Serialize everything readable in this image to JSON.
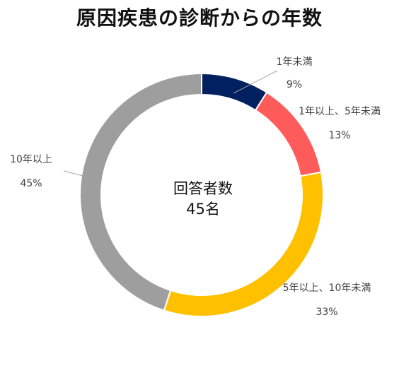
{
  "chart_data": {
    "type": "pie",
    "title": "原因疾患の診断からの年数",
    "center_label": "回答者数",
    "center_value": "45名",
    "slices": [
      {
        "name": "1年未満",
        "value": 9,
        "label": "9%",
        "color": "#002060"
      },
      {
        "name": "1年以上、5年未満",
        "value": 13,
        "label": "13%",
        "color": "#FF5B5B"
      },
      {
        "name": "5年以上、10年未満",
        "value": 33,
        "label": "33%",
        "color": "#FFC000"
      },
      {
        "name": "10年以上",
        "value": 45,
        "label": "45%",
        "color": "#9E9E9E"
      }
    ]
  }
}
